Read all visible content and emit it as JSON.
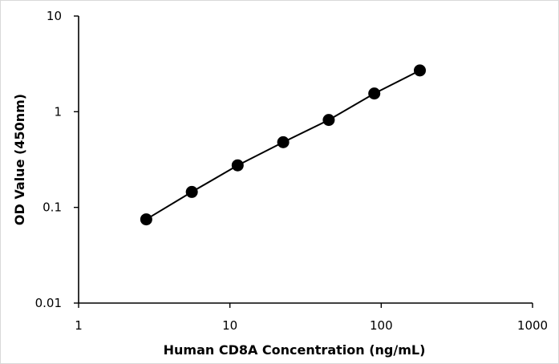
{
  "chart_data": {
    "type": "scatter",
    "title": "",
    "xlabel": "Human CD8A Concentration (ng/mL)",
    "ylabel": "OD Value (450nm)",
    "xscale": "log",
    "yscale": "log",
    "xlim": [
      1,
      1000
    ],
    "ylim": [
      0.01,
      10
    ],
    "xticks": [
      "1",
      "10",
      "100",
      "1000"
    ],
    "yticks": [
      "0.01",
      "0.1",
      "1",
      "10"
    ],
    "grid": false,
    "legend": "none",
    "series": [
      {
        "x": [
          2.8,
          5.6,
          11.25,
          22.5,
          45,
          90,
          180
        ],
        "y": [
          0.075,
          0.145,
          0.275,
          0.48,
          0.82,
          1.55,
          2.7
        ],
        "color": "#000000"
      }
    ]
  }
}
